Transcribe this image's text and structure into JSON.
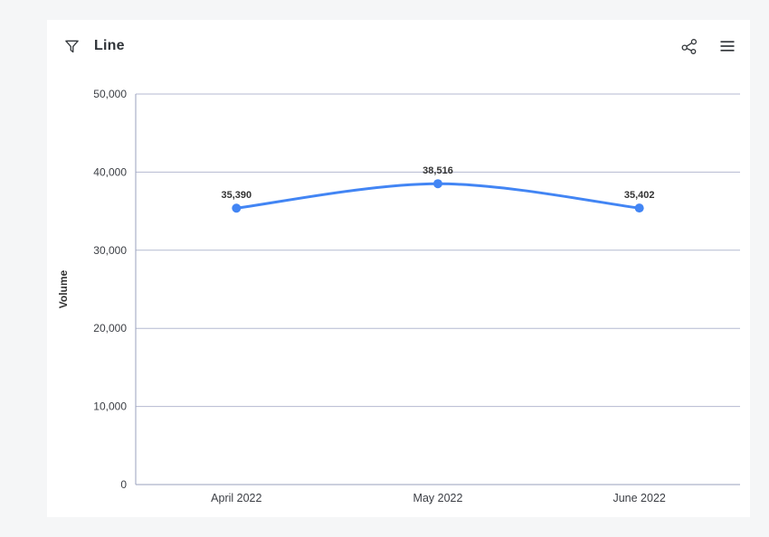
{
  "header": {
    "title": "Line"
  },
  "colors": {
    "line": "#4285F4",
    "marker": "#4285F4",
    "gridline": "#b4bad0",
    "axis": "#9aa2bd",
    "tick_text": "#3b3e44",
    "data_label_text": "#333333",
    "icon": "#32363a",
    "page_background": "#f5f6f7",
    "card_background": "#ffffff"
  },
  "chart_data": {
    "type": "line",
    "title": "Line",
    "categories": [
      "April 2022",
      "May 2022",
      "June 2022"
    ],
    "series": [
      {
        "name": "Volume",
        "values": [
          35390,
          38516,
          35402
        ],
        "labels": [
          "35,390",
          "38,516",
          "35,402"
        ]
      }
    ],
    "xlabel": "",
    "ylabel": "Volume",
    "ylim": [
      0,
      50000
    ],
    "ytick_step": 10000,
    "ytick_labels": [
      "0",
      "10,000",
      "20,000",
      "30,000",
      "40,000",
      "50,000"
    ],
    "grid": "horizontal",
    "legend_position": "none",
    "marker": "circle",
    "smooth": true
  }
}
